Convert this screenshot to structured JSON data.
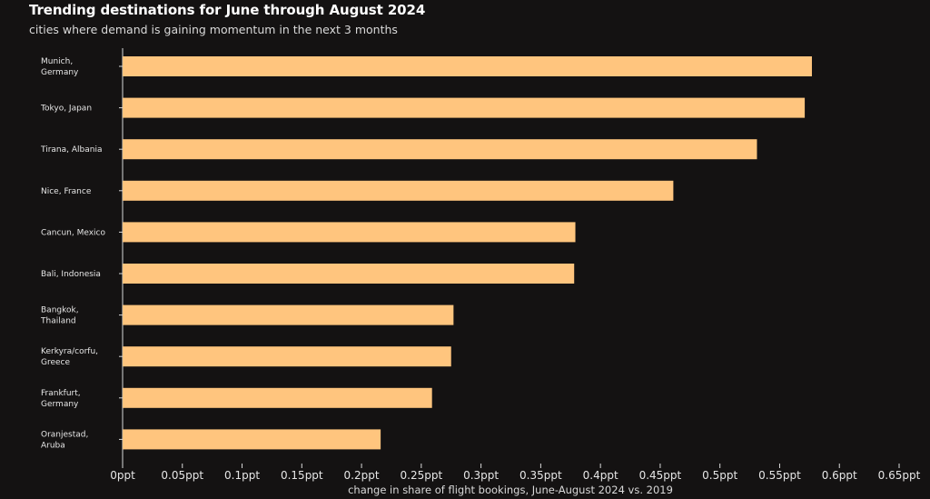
{
  "chart_data": {
    "type": "bar",
    "orientation": "horizontal",
    "title": "Trending destinations for June through August 2024",
    "subtitle": "cities where demand is gaining momentum in the next 3 months",
    "xlabel": "change in share of flight bookings, June-August 2024 vs. 2019",
    "ylabel": "",
    "categories": [
      [
        "Munich,",
        "Germany"
      ],
      [
        "Tokyo, Japan"
      ],
      [
        "Tirana, Albania"
      ],
      [
        "Nice, France"
      ],
      [
        "Cancun, Mexico"
      ],
      [
        "Bali, Indonesia"
      ],
      [
        "Bangkok,",
        "Thailand"
      ],
      [
        "Kerkyra/corfu,",
        "Greece"
      ],
      [
        "Frankfurt,",
        "Germany"
      ],
      [
        "Oranjestad,",
        "Aruba"
      ]
    ],
    "values": [
      0.577,
      0.571,
      0.531,
      0.461,
      0.379,
      0.378,
      0.277,
      0.275,
      0.259,
      0.216
    ],
    "xlim": [
      0,
      0.65
    ],
    "x_ticks": [
      0,
      0.05,
      0.1,
      0.15,
      0.2,
      0.25,
      0.3,
      0.35,
      0.4,
      0.45,
      0.5,
      0.55,
      0.6,
      0.65
    ],
    "x_tick_labels": [
      "0ppt",
      "0.05ppt",
      "0.1ppt",
      "0.15ppt",
      "0.2ppt",
      "0.25ppt",
      "0.3ppt",
      "0.35ppt",
      "0.4ppt",
      "0.45ppt",
      "0.5ppt",
      "0.55ppt",
      "0.6ppt",
      "0.65ppt"
    ],
    "grid": false,
    "colors": {
      "bar": "#FFC57E",
      "background": "#141212",
      "axis": "#d9d9d9",
      "text": "#e6e6e6"
    }
  }
}
